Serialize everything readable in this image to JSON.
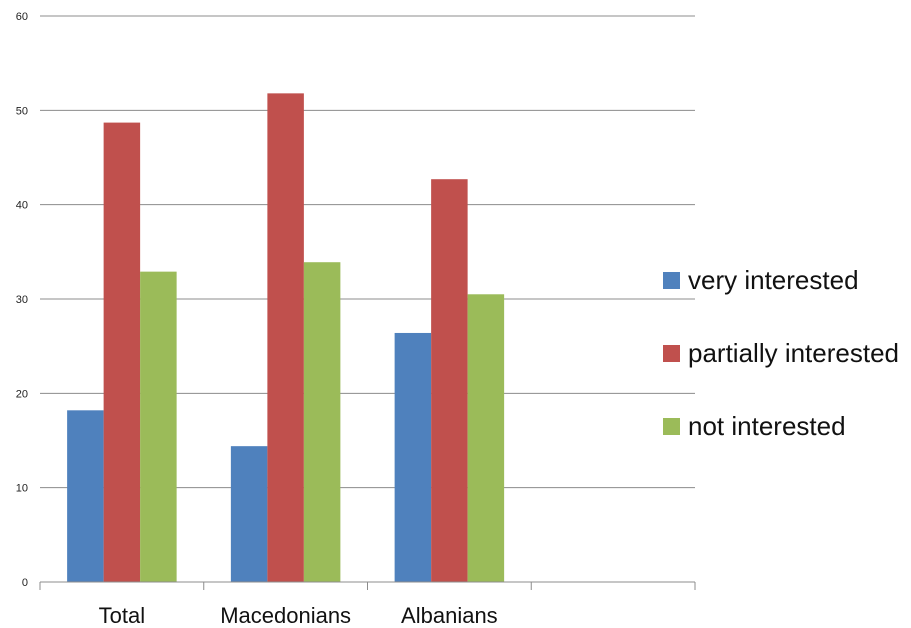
{
  "chart_data": {
    "type": "bar",
    "categories": [
      "Total",
      "Macedonians",
      "Albanians",
      ""
    ],
    "series": [
      {
        "name": "very interested",
        "color": "#4F81BD",
        "values": [
          18.2,
          14.4,
          26.4,
          null
        ]
      },
      {
        "name": "partially interested",
        "color": "#C0504D",
        "values": [
          48.7,
          51.8,
          42.7,
          null
        ]
      },
      {
        "name": "not interested",
        "color": "#9BBB59",
        "values": [
          32.9,
          33.9,
          30.5,
          null
        ]
      }
    ],
    "yticks": [
      "0",
      "10",
      "20",
      "30",
      "40",
      "50",
      "60"
    ],
    "ylim": [
      0,
      60
    ],
    "grid": true,
    "legend_position": "right"
  }
}
